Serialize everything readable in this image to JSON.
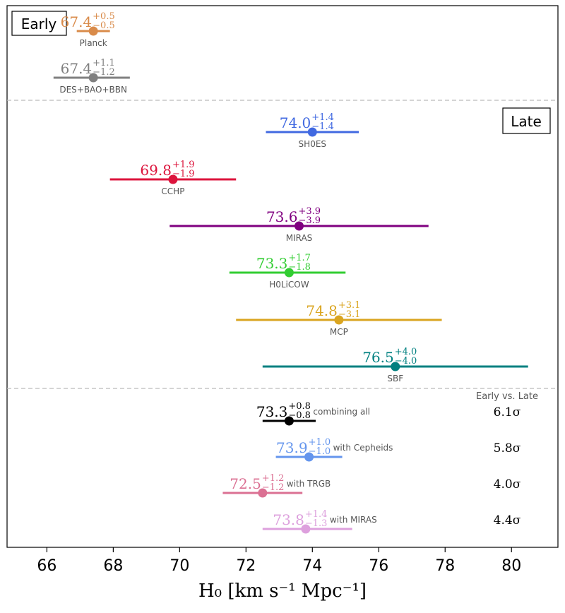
{
  "chart_data": {
    "type": "forest",
    "xlabel": "H₀ [km s⁻¹ Mpc⁻¹]",
    "xlim": [
      64.8,
      81.4
    ],
    "xticks": [
      66,
      68,
      70,
      72,
      74,
      76,
      78,
      80
    ],
    "section_labels": {
      "early": "Early",
      "late": "Late"
    },
    "sigma_header": "Early vs. Late",
    "measurements": [
      {
        "group": "early",
        "name": "Planck",
        "value": 67.4,
        "plus": 0.5,
        "minus": 0.5,
        "value_text": "67.4",
        "plus_text": "+0.5",
        "minus_text": "−0.5",
        "color": "#d98b4a"
      },
      {
        "group": "early",
        "name": "DES+BAO+BBN",
        "value": 67.4,
        "plus": 1.1,
        "minus": 1.2,
        "value_text": "67.4",
        "plus_text": "+1.1",
        "minus_text": "−1.2",
        "color": "#808080"
      },
      {
        "group": "late",
        "name": "SH0ES",
        "value": 74.0,
        "plus": 1.4,
        "minus": 1.4,
        "value_text": "74.0",
        "plus_text": "+1.4",
        "minus_text": "−1.4",
        "color": "#4169e1"
      },
      {
        "group": "late",
        "name": "CCHP",
        "value": 69.8,
        "plus": 1.9,
        "minus": 1.9,
        "value_text": "69.8",
        "plus_text": "+1.9",
        "minus_text": "−1.9",
        "color": "#dc143c"
      },
      {
        "group": "late",
        "name": "MIRAS",
        "value": 73.6,
        "plus": 3.9,
        "minus": 3.9,
        "value_text": "73.6",
        "plus_text": "+3.9",
        "minus_text": "−3.9",
        "color": "#800080"
      },
      {
        "group": "late",
        "name": "H0LiCOW",
        "value": 73.3,
        "plus": 1.7,
        "minus": 1.8,
        "value_text": "73.3",
        "plus_text": "+1.7",
        "minus_text": "−1.8",
        "color": "#32cd32"
      },
      {
        "group": "late",
        "name": "MCP",
        "value": 74.8,
        "plus": 3.1,
        "minus": 3.1,
        "value_text": "74.8",
        "plus_text": "+3.1",
        "minus_text": "−3.1",
        "color": "#daa520"
      },
      {
        "group": "late",
        "name": "SBF",
        "value": 76.5,
        "plus": 4.0,
        "minus": 4.0,
        "value_text": "76.5",
        "plus_text": "+4.0",
        "minus_text": "−4.0",
        "color": "#008080"
      },
      {
        "group": "combined",
        "name": "combining all",
        "value": 73.3,
        "plus": 0.8,
        "minus": 0.8,
        "value_text": "73.3",
        "plus_text": "+0.8",
        "minus_text": "−0.8",
        "color": "#000000",
        "sigma": "6.1σ"
      },
      {
        "group": "combined",
        "name": "with Cepheids",
        "value": 73.9,
        "plus": 1.0,
        "minus": 1.0,
        "value_text": "73.9",
        "plus_text": "+1.0",
        "minus_text": "−1.0",
        "color": "#6495ed",
        "sigma": "5.8σ"
      },
      {
        "group": "combined",
        "name": "with TRGB",
        "value": 72.5,
        "plus": 1.2,
        "minus": 1.2,
        "value_text": "72.5",
        "plus_text": "+1.2",
        "minus_text": "−1.2",
        "color": "#db7093",
        "sigma": "4.0σ"
      },
      {
        "group": "combined",
        "name": "with MIRAS",
        "value": 73.8,
        "plus": 1.4,
        "minus": 1.3,
        "value_text": "73.8",
        "plus_text": "+1.4",
        "minus_text": "−1.3",
        "color": "#dda0dd",
        "sigma": "4.4σ"
      }
    ]
  }
}
